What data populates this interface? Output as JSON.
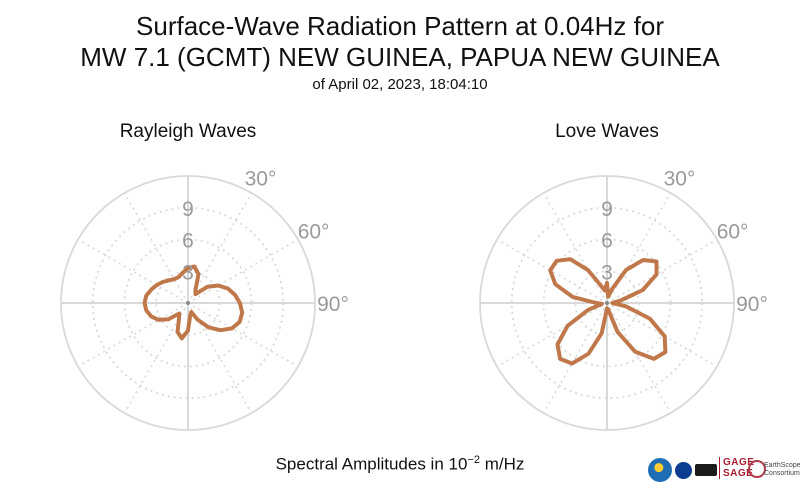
{
  "header": {
    "title_line1": "Surface-Wave Radiation Pattern at 0.04Hz for",
    "title_line2": "MW 7.1 (GCMT) NEW GUINEA, PAPUA NEW GUINEA",
    "subtitle": "of April 02, 2023, 18:04:10"
  },
  "footer": {
    "label_prefix": "Spectral Amplitudes in 10",
    "label_exponent": "−2",
    "label_unit": "m/Hz"
  },
  "logos": {
    "gage_line1": "GAGE",
    "gage_line2": "SAGE",
    "es_line1": "EarthScope",
    "es_line2": "Consortium"
  },
  "colors": {
    "pattern": "#c0784a",
    "grid": "#d9d9d9",
    "tick_text": "#9a9a9a"
  },
  "chart_data": [
    {
      "type": "polar-line",
      "title": "Rayleigh Waves",
      "r_ticks": [
        "3",
        "6",
        "9"
      ],
      "r_max": 12,
      "angle_ticks": [
        "30°",
        "60°",
        "90°"
      ],
      "angle_values": [
        30,
        60,
        90
      ],
      "radial_spokes_every_deg": 30,
      "series": [
        {
          "theta_deg": [
            0,
            10,
            20,
            30,
            40,
            50,
            60,
            70,
            80,
            90,
            100,
            110,
            120,
            130,
            140,
            150,
            160,
            170,
            180,
            190,
            200,
            210,
            220,
            230,
            240,
            250,
            260,
            270,
            280,
            290,
            300,
            310,
            320,
            330,
            340,
            350
          ],
          "r": [
            3.3,
            3.5,
            2.9,
            1.4,
            1.1,
            2.4,
            3.3,
            4.0,
            4.5,
            4.9,
            5.2,
            5.2,
            4.8,
            4.0,
            3.0,
            1.8,
            0.9,
            1.2,
            2.6,
            3.4,
            2.9,
            1.7,
            1.3,
            2.4,
            3.2,
            3.7,
            4.0,
            4.1,
            4.0,
            3.7,
            3.4,
            3.1,
            2.8,
            2.6,
            2.6,
            2.9
          ]
        }
      ]
    },
    {
      "type": "polar-line",
      "title": "Love Waves",
      "r_ticks": [
        "3",
        "6",
        "9"
      ],
      "r_max": 12,
      "angle_ticks": [
        "30°",
        "60°",
        "90°"
      ],
      "angle_values": [
        30,
        60,
        90
      ],
      "radial_spokes_every_deg": 30,
      "series": [
        {
          "theta_deg": [
            0,
            10,
            20,
            30,
            40,
            50,
            60,
            70,
            80,
            90,
            100,
            110,
            120,
            130,
            140,
            150,
            160,
            170,
            180,
            190,
            200,
            210,
            220,
            230,
            240,
            250,
            260,
            270,
            280,
            290,
            300,
            310,
            320,
            330,
            340,
            350
          ],
          "r": [
            1.9,
            0.6,
            1.4,
            3.6,
            5.3,
            6.1,
            5.4,
            3.6,
            1.3,
            0.5,
            1.8,
            4.3,
            6.3,
            7.2,
            6.9,
            5.3,
            2.9,
            0.6,
            0.5,
            2.9,
            5.1,
            6.6,
            6.9,
            6.1,
            4.3,
            1.9,
            0.5,
            1.0,
            3.3,
            5.2,
            6.2,
            6.2,
            5.4,
            3.6,
            1.8,
            1.2
          ]
        }
      ]
    }
  ]
}
